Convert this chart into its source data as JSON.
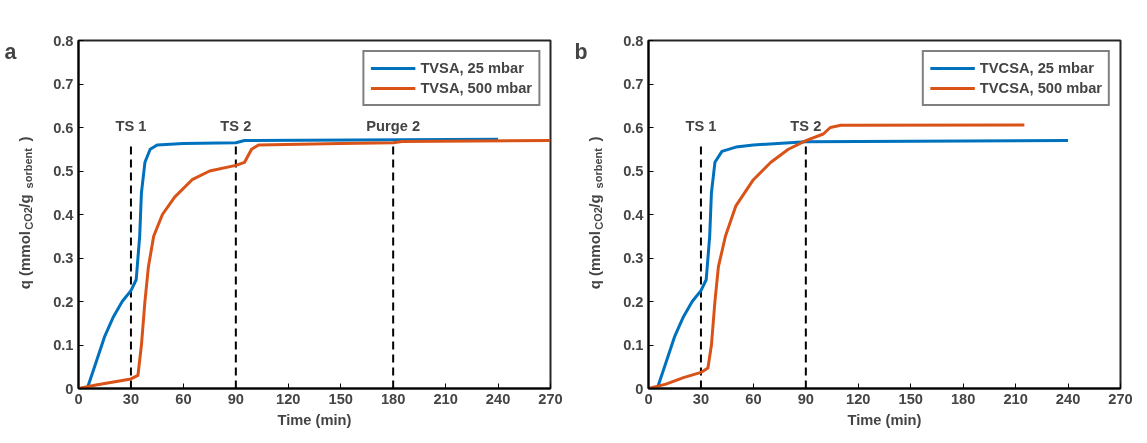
{
  "chart_data": [
    {
      "type": "line",
      "title": "a",
      "xlabel": "Time (min)",
      "ylabel": "q (mmol$_{CO2}$/g$_{sorbent}$)",
      "xlim": [
        0,
        270
      ],
      "ylim": [
        0,
        0.8
      ],
      "xticks": [
        0,
        30,
        60,
        90,
        120,
        150,
        180,
        210,
        240,
        270
      ],
      "yticks": [
        0,
        0.1,
        0.2,
        0.3,
        0.4,
        0.5,
        0.6,
        0.7,
        0.8
      ],
      "grid": false,
      "legend": "top right",
      "line_style": "solid",
      "marker": "none",
      "ref_lines": [
        {
          "axis": "x",
          "value": 30,
          "label": "TS 1",
          "color": "#000000",
          "line_style": "dashed"
        },
        {
          "axis": "x",
          "value": 90,
          "label": "TS 2",
          "color": "#000000",
          "line_style": "dashed"
        },
        {
          "axis": "x",
          "value": 180,
          "label": "Purge 2",
          "color": "#000000",
          "line_style": "dashed"
        }
      ],
      "series": [
        {
          "name": "TVSA, 25 mbar",
          "color": "#0072bd",
          "x": [
            5,
            10,
            15,
            20,
            25,
            30,
            33,
            35,
            36,
            38,
            41,
            45,
            60,
            90,
            95,
            240
          ],
          "values": [
            0,
            0.06,
            0.12,
            0.165,
            0.2,
            0.225,
            0.25,
            0.35,
            0.45,
            0.52,
            0.55,
            0.56,
            0.563,
            0.565,
            0.57,
            0.573
          ]
        },
        {
          "name": "TVSA, 500 mbar",
          "color": "#d95319",
          "x": [
            0,
            10,
            20,
            30,
            34,
            36,
            38,
            40,
            43,
            48,
            55,
            65,
            75,
            90,
            95,
            99,
            103,
            150,
            180,
            185,
            270
          ],
          "values": [
            0,
            0.008,
            0.015,
            0.022,
            0.03,
            0.1,
            0.2,
            0.28,
            0.35,
            0.4,
            0.44,
            0.48,
            0.5,
            0.513,
            0.52,
            0.55,
            0.56,
            0.563,
            0.565,
            0.568,
            0.57
          ]
        }
      ]
    },
    {
      "type": "line",
      "title": "b",
      "xlabel": "Time (min)",
      "ylabel": "q (mmol$_{CO2}$/g$_{sorbent}$)",
      "xlim": [
        0,
        270
      ],
      "ylim": [
        0,
        0.8
      ],
      "xticks": [
        0,
        30,
        60,
        90,
        120,
        150,
        180,
        210,
        240,
        270
      ],
      "yticks": [
        0,
        0.1,
        0.2,
        0.3,
        0.4,
        0.5,
        0.6,
        0.7,
        0.8
      ],
      "grid": false,
      "legend": "top right",
      "line_style": "solid",
      "marker": "none",
      "ref_lines": [
        {
          "axis": "x",
          "value": 30,
          "label": "TS 1",
          "color": "#000000",
          "line_style": "dashed"
        },
        {
          "axis": "x",
          "value": 90,
          "label": "TS 2",
          "color": "#000000",
          "line_style": "dashed"
        }
      ],
      "series": [
        {
          "name": "TVCSA, 25 mbar",
          "color": "#0072bd",
          "x": [
            5,
            10,
            15,
            20,
            25,
            30,
            33,
            35,
            36,
            38,
            42,
            50,
            60,
            90,
            240
          ],
          "values": [
            0,
            0.06,
            0.12,
            0.165,
            0.2,
            0.225,
            0.25,
            0.35,
            0.45,
            0.52,
            0.545,
            0.555,
            0.56,
            0.567,
            0.57
          ]
        },
        {
          "name": "TVCSA, 500 mbar",
          "color": "#d95319",
          "x": [
            0,
            10,
            20,
            30,
            34,
            36,
            38,
            40,
            44,
            50,
            60,
            70,
            80,
            90,
            100,
            104,
            110,
            215
          ],
          "values": [
            0,
            0.01,
            0.025,
            0.037,
            0.047,
            0.1,
            0.2,
            0.28,
            0.35,
            0.42,
            0.48,
            0.52,
            0.55,
            0.57,
            0.585,
            0.6,
            0.605,
            0.606
          ]
        }
      ]
    }
  ]
}
